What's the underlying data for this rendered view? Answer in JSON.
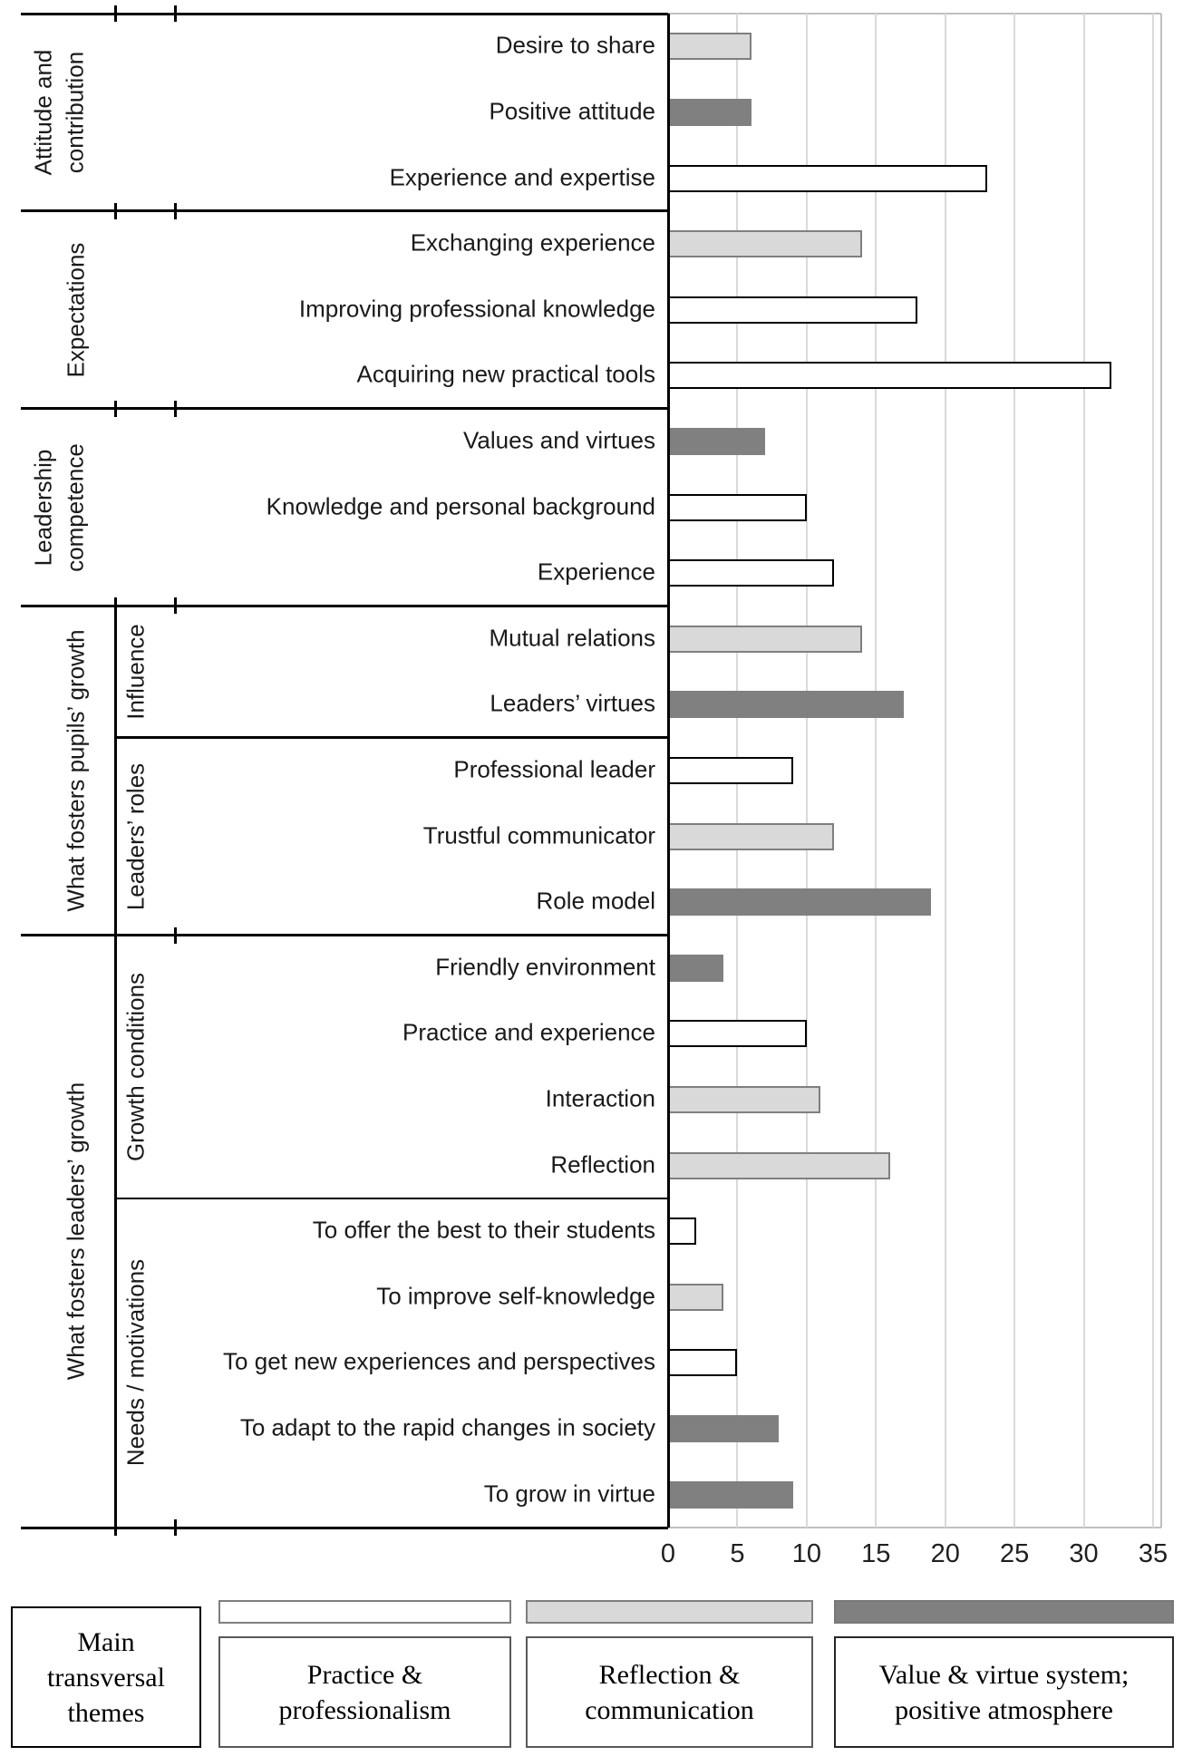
{
  "colors": {
    "bar_white_fill": "#ffffff",
    "bar_white_border": "#000000",
    "bar_light_fill": "#d9d9d9",
    "bar_light_border": "#7f7f7f",
    "bar_dark_fill": "#808080",
    "gridline": "#d9d9d9",
    "plot_border": "#bfbfbf",
    "axis_line": "#000000"
  },
  "legend": {
    "title": "Main transversal themes"
  },
  "chart_data": {
    "type": "bar",
    "orientation": "horizontal",
    "title": "",
    "xlabel": "",
    "ylabel": "",
    "xlim": [
      0,
      35
    ],
    "xticks": [
      0,
      5,
      10,
      15,
      20,
      25,
      30,
      35
    ],
    "grid": true,
    "legend_position": "bottom",
    "series_legend": [
      {
        "key": "practice",
        "label": "Practice & professionalism",
        "fill": "#ffffff",
        "border": "#000000"
      },
      {
        "key": "reflection",
        "label": "Reflection & communication",
        "fill": "#d9d9d9",
        "border": "#7f7f7f"
      },
      {
        "key": "value",
        "label": "Value & virtue system; positive atmosphere",
        "fill": "#808080",
        "border": "#808080"
      }
    ],
    "groups": [
      {
        "label": "Attitude and contribution",
        "label_lines": [
          "Attitude and",
          "contribution"
        ],
        "items": [
          {
            "label": "Desire to share",
            "value": 6,
            "series": "reflection"
          },
          {
            "label": "Positive attitude",
            "value": 6,
            "series": "value"
          },
          {
            "label": "Experience and expertise",
            "value": 23,
            "series": "practice"
          }
        ]
      },
      {
        "label": "Expectations",
        "label_lines": [
          "Expectations"
        ],
        "items": [
          {
            "label": "Exchanging experience",
            "value": 14,
            "series": "reflection"
          },
          {
            "label": "Improving professional knowledge",
            "value": 18,
            "series": "practice"
          },
          {
            "label": "Acquiring new practical tools",
            "value": 32,
            "series": "practice"
          }
        ]
      },
      {
        "label": "Leadership competence",
        "label_lines": [
          "Leadership",
          "competence"
        ],
        "items": [
          {
            "label": "Values and virtues",
            "value": 7,
            "series": "value"
          },
          {
            "label": "Knowledge and personal background",
            "value": 10,
            "series": "practice"
          },
          {
            "label": "Experience",
            "value": 12,
            "series": "practice"
          }
        ]
      },
      {
        "label": "What fosters pupils’ growth",
        "label_lines": [
          "What fosters pupils’ growth"
        ],
        "subgroups": [
          {
            "label": "Influence",
            "items": [
              {
                "label": "Mutual relations",
                "value": 14,
                "series": "reflection"
              },
              {
                "label": "Leaders’ virtues",
                "value": 17,
                "series": "value"
              }
            ]
          },
          {
            "label": "Leaders’ roles",
            "items": [
              {
                "label": "Professional leader",
                "value": 9,
                "series": "practice"
              },
              {
                "label": "Trustful communicator",
                "value": 12,
                "series": "reflection"
              },
              {
                "label": "Role model",
                "value": 19,
                "series": "value"
              }
            ]
          }
        ]
      },
      {
        "label": "What fosters leaders’ growth",
        "label_lines": [
          "What fosters leaders’ growth"
        ],
        "subgroups": [
          {
            "label": "Growth conditions",
            "items": [
              {
                "label": "Friendly environment",
                "value": 4,
                "series": "value"
              },
              {
                "label": "Practice and experience",
                "value": 10,
                "series": "practice"
              },
              {
                "label": "Interaction",
                "value": 11,
                "series": "reflection"
              },
              {
                "label": "Reflection",
                "value": 16,
                "series": "reflection"
              }
            ]
          },
          {
            "label": "Needs / motivations",
            "items": [
              {
                "label": "To offer the best to their students",
                "value": 2,
                "series": "practice"
              },
              {
                "label": "To improve self-knowledge",
                "value": 4,
                "series": "reflection"
              },
              {
                "label": "To get new experiences and perspectives",
                "value": 5,
                "series": "practice"
              },
              {
                "label": "To adapt to the rapid changes in society",
                "value": 8,
                "series": "value"
              },
              {
                "label": "To grow in virtue",
                "value": 9,
                "series": "value"
              }
            ]
          }
        ]
      }
    ]
  }
}
